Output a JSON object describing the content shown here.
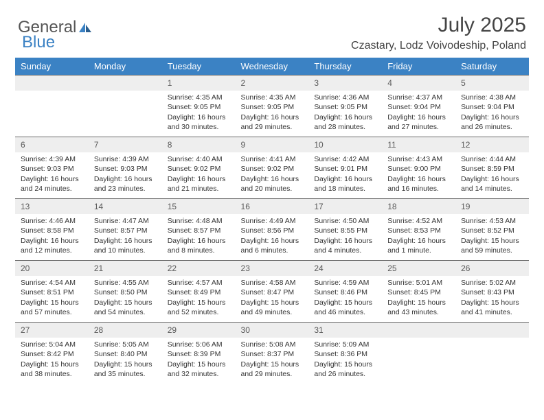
{
  "brand": {
    "general": "General",
    "blue": "Blue"
  },
  "header": {
    "month_title": "July 2025",
    "location": "Czastary, Lodz Voivodeship, Poland"
  },
  "colors": {
    "header_bg": "#3b82c4",
    "header_text": "#ffffff",
    "daynum_bg": "#eeeeee",
    "daynum_border": "#6a6a6a",
    "page_bg": "#ffffff",
    "text": "#333333"
  },
  "day_headers": [
    "Sunday",
    "Monday",
    "Tuesday",
    "Wednesday",
    "Thursday",
    "Friday",
    "Saturday"
  ],
  "weeks": [
    [
      {
        "n": "",
        "empty": true
      },
      {
        "n": "",
        "empty": true
      },
      {
        "n": "1",
        "sr": "Sunrise: 4:35 AM",
        "ss": "Sunset: 9:05 PM",
        "d1": "Daylight: 16 hours",
        "d2": "and 30 minutes."
      },
      {
        "n": "2",
        "sr": "Sunrise: 4:35 AM",
        "ss": "Sunset: 9:05 PM",
        "d1": "Daylight: 16 hours",
        "d2": "and 29 minutes."
      },
      {
        "n": "3",
        "sr": "Sunrise: 4:36 AM",
        "ss": "Sunset: 9:05 PM",
        "d1": "Daylight: 16 hours",
        "d2": "and 28 minutes."
      },
      {
        "n": "4",
        "sr": "Sunrise: 4:37 AM",
        "ss": "Sunset: 9:04 PM",
        "d1": "Daylight: 16 hours",
        "d2": "and 27 minutes."
      },
      {
        "n": "5",
        "sr": "Sunrise: 4:38 AM",
        "ss": "Sunset: 9:04 PM",
        "d1": "Daylight: 16 hours",
        "d2": "and 26 minutes."
      }
    ],
    [
      {
        "n": "6",
        "sr": "Sunrise: 4:39 AM",
        "ss": "Sunset: 9:03 PM",
        "d1": "Daylight: 16 hours",
        "d2": "and 24 minutes."
      },
      {
        "n": "7",
        "sr": "Sunrise: 4:39 AM",
        "ss": "Sunset: 9:03 PM",
        "d1": "Daylight: 16 hours",
        "d2": "and 23 minutes."
      },
      {
        "n": "8",
        "sr": "Sunrise: 4:40 AM",
        "ss": "Sunset: 9:02 PM",
        "d1": "Daylight: 16 hours",
        "d2": "and 21 minutes."
      },
      {
        "n": "9",
        "sr": "Sunrise: 4:41 AM",
        "ss": "Sunset: 9:02 PM",
        "d1": "Daylight: 16 hours",
        "d2": "and 20 minutes."
      },
      {
        "n": "10",
        "sr": "Sunrise: 4:42 AM",
        "ss": "Sunset: 9:01 PM",
        "d1": "Daylight: 16 hours",
        "d2": "and 18 minutes."
      },
      {
        "n": "11",
        "sr": "Sunrise: 4:43 AM",
        "ss": "Sunset: 9:00 PM",
        "d1": "Daylight: 16 hours",
        "d2": "and 16 minutes."
      },
      {
        "n": "12",
        "sr": "Sunrise: 4:44 AM",
        "ss": "Sunset: 8:59 PM",
        "d1": "Daylight: 16 hours",
        "d2": "and 14 minutes."
      }
    ],
    [
      {
        "n": "13",
        "sr": "Sunrise: 4:46 AM",
        "ss": "Sunset: 8:58 PM",
        "d1": "Daylight: 16 hours",
        "d2": "and 12 minutes."
      },
      {
        "n": "14",
        "sr": "Sunrise: 4:47 AM",
        "ss": "Sunset: 8:57 PM",
        "d1": "Daylight: 16 hours",
        "d2": "and 10 minutes."
      },
      {
        "n": "15",
        "sr": "Sunrise: 4:48 AM",
        "ss": "Sunset: 8:57 PM",
        "d1": "Daylight: 16 hours",
        "d2": "and 8 minutes."
      },
      {
        "n": "16",
        "sr": "Sunrise: 4:49 AM",
        "ss": "Sunset: 8:56 PM",
        "d1": "Daylight: 16 hours",
        "d2": "and 6 minutes."
      },
      {
        "n": "17",
        "sr": "Sunrise: 4:50 AM",
        "ss": "Sunset: 8:55 PM",
        "d1": "Daylight: 16 hours",
        "d2": "and 4 minutes."
      },
      {
        "n": "18",
        "sr": "Sunrise: 4:52 AM",
        "ss": "Sunset: 8:53 PM",
        "d1": "Daylight: 16 hours",
        "d2": "and 1 minute."
      },
      {
        "n": "19",
        "sr": "Sunrise: 4:53 AM",
        "ss": "Sunset: 8:52 PM",
        "d1": "Daylight: 15 hours",
        "d2": "and 59 minutes."
      }
    ],
    [
      {
        "n": "20",
        "sr": "Sunrise: 4:54 AM",
        "ss": "Sunset: 8:51 PM",
        "d1": "Daylight: 15 hours",
        "d2": "and 57 minutes."
      },
      {
        "n": "21",
        "sr": "Sunrise: 4:55 AM",
        "ss": "Sunset: 8:50 PM",
        "d1": "Daylight: 15 hours",
        "d2": "and 54 minutes."
      },
      {
        "n": "22",
        "sr": "Sunrise: 4:57 AM",
        "ss": "Sunset: 8:49 PM",
        "d1": "Daylight: 15 hours",
        "d2": "and 52 minutes."
      },
      {
        "n": "23",
        "sr": "Sunrise: 4:58 AM",
        "ss": "Sunset: 8:47 PM",
        "d1": "Daylight: 15 hours",
        "d2": "and 49 minutes."
      },
      {
        "n": "24",
        "sr": "Sunrise: 4:59 AM",
        "ss": "Sunset: 8:46 PM",
        "d1": "Daylight: 15 hours",
        "d2": "and 46 minutes."
      },
      {
        "n": "25",
        "sr": "Sunrise: 5:01 AM",
        "ss": "Sunset: 8:45 PM",
        "d1": "Daylight: 15 hours",
        "d2": "and 43 minutes."
      },
      {
        "n": "26",
        "sr": "Sunrise: 5:02 AM",
        "ss": "Sunset: 8:43 PM",
        "d1": "Daylight: 15 hours",
        "d2": "and 41 minutes."
      }
    ],
    [
      {
        "n": "27",
        "sr": "Sunrise: 5:04 AM",
        "ss": "Sunset: 8:42 PM",
        "d1": "Daylight: 15 hours",
        "d2": "and 38 minutes."
      },
      {
        "n": "28",
        "sr": "Sunrise: 5:05 AM",
        "ss": "Sunset: 8:40 PM",
        "d1": "Daylight: 15 hours",
        "d2": "and 35 minutes."
      },
      {
        "n": "29",
        "sr": "Sunrise: 5:06 AM",
        "ss": "Sunset: 8:39 PM",
        "d1": "Daylight: 15 hours",
        "d2": "and 32 minutes."
      },
      {
        "n": "30",
        "sr": "Sunrise: 5:08 AM",
        "ss": "Sunset: 8:37 PM",
        "d1": "Daylight: 15 hours",
        "d2": "and 29 minutes."
      },
      {
        "n": "31",
        "sr": "Sunrise: 5:09 AM",
        "ss": "Sunset: 8:36 PM",
        "d1": "Daylight: 15 hours",
        "d2": "and 26 minutes."
      },
      {
        "n": "",
        "empty": true
      },
      {
        "n": "",
        "empty": true
      }
    ]
  ]
}
